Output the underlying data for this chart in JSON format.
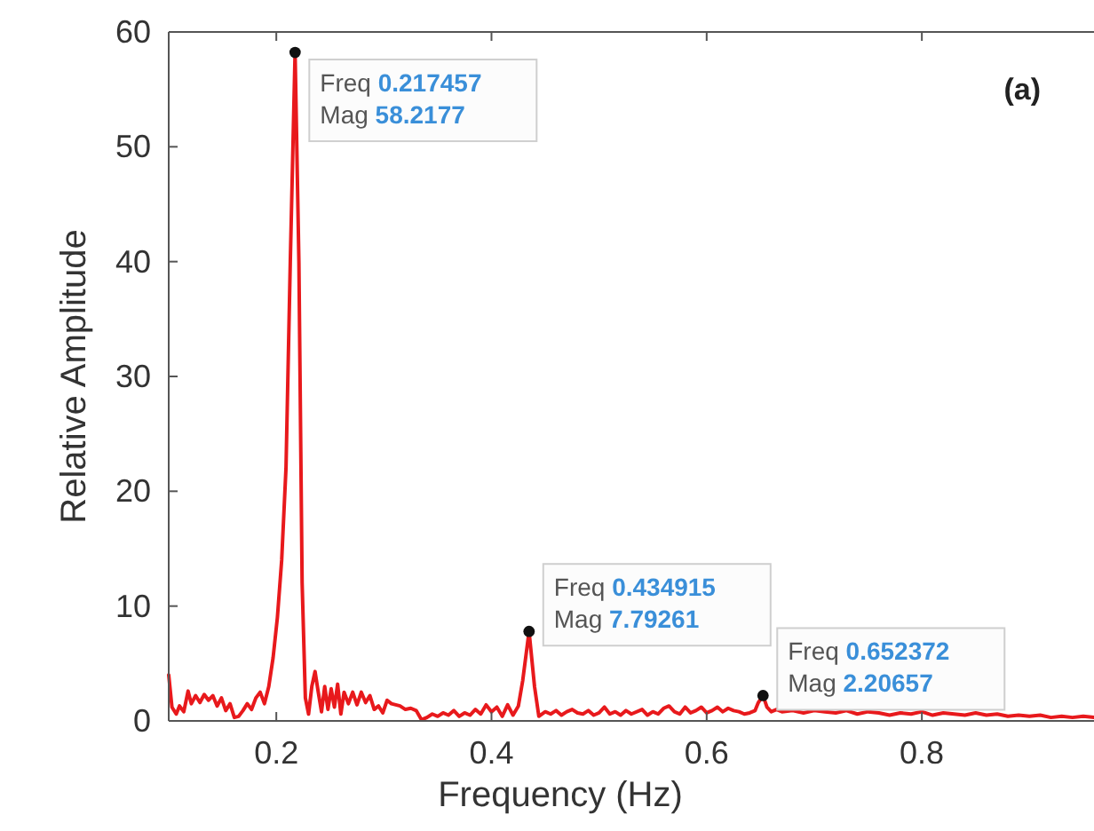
{
  "chart_data": {
    "type": "line",
    "xlabel": "Frequency (Hz)",
    "ylabel": "Relative Amplitude",
    "xlim": [
      0.1,
      0.96
    ],
    "ylim": [
      0,
      60
    ],
    "xticks": [
      0.2,
      0.4,
      0.6,
      0.8
    ],
    "yticks": [
      0,
      10,
      20,
      30,
      40,
      50,
      60
    ],
    "grid": false,
    "marker": "none",
    "line_style": "solid",
    "series": [
      {
        "color": "#e8191c",
        "x": [
          0.1,
          0.103,
          0.107,
          0.11,
          0.114,
          0.118,
          0.121,
          0.125,
          0.129,
          0.133,
          0.137,
          0.141,
          0.145,
          0.149,
          0.153,
          0.157,
          0.161,
          0.165,
          0.169,
          0.173,
          0.177,
          0.181,
          0.185,
          0.189,
          0.193,
          0.197,
          0.201,
          0.205,
          0.209,
          0.213,
          0.217457,
          0.221,
          0.224,
          0.227,
          0.23,
          0.233,
          0.236,
          0.239,
          0.242,
          0.245,
          0.248,
          0.251,
          0.254,
          0.257,
          0.26,
          0.263,
          0.267,
          0.271,
          0.275,
          0.279,
          0.283,
          0.287,
          0.291,
          0.295,
          0.299,
          0.303,
          0.307,
          0.311,
          0.315,
          0.32,
          0.325,
          0.33,
          0.335,
          0.34,
          0.345,
          0.35,
          0.355,
          0.36,
          0.365,
          0.37,
          0.375,
          0.38,
          0.385,
          0.39,
          0.395,
          0.4,
          0.405,
          0.41,
          0.415,
          0.42,
          0.425,
          0.429,
          0.434915,
          0.44,
          0.444,
          0.45,
          0.455,
          0.46,
          0.465,
          0.47,
          0.475,
          0.48,
          0.485,
          0.49,
          0.495,
          0.5,
          0.505,
          0.51,
          0.515,
          0.52,
          0.525,
          0.53,
          0.54,
          0.545,
          0.55,
          0.555,
          0.56,
          0.565,
          0.57,
          0.575,
          0.58,
          0.585,
          0.59,
          0.595,
          0.6,
          0.605,
          0.61,
          0.615,
          0.62,
          0.625,
          0.63,
          0.635,
          0.64,
          0.645,
          0.648,
          0.652372,
          0.656,
          0.66,
          0.665,
          0.67,
          0.68,
          0.69,
          0.7,
          0.71,
          0.72,
          0.73,
          0.74,
          0.75,
          0.76,
          0.77,
          0.78,
          0.79,
          0.8,
          0.81,
          0.82,
          0.83,
          0.84,
          0.85,
          0.86,
          0.87,
          0.88,
          0.89,
          0.9,
          0.91,
          0.92,
          0.93,
          0.94,
          0.95,
          0.96
        ],
        "values": [
          4.0,
          1.2,
          0.6,
          1.3,
          0.8,
          2.6,
          1.5,
          2.2,
          1.6,
          2.3,
          1.8,
          2.2,
          1.3,
          2.0,
          0.9,
          1.5,
          0.3,
          0.4,
          0.9,
          1.5,
          1.0,
          2.0,
          2.5,
          1.5,
          3.0,
          5.5,
          9,
          14,
          22,
          40,
          58.2177,
          40,
          12,
          2.0,
          0.6,
          3.0,
          4.3,
          2.5,
          0.8,
          3.0,
          1.0,
          2.8,
          1.2,
          3.2,
          0.6,
          2.5,
          1.5,
          2.5,
          1.4,
          2.5,
          1.6,
          2.2,
          1.0,
          1.3,
          0.7,
          1.8,
          1.5,
          1.4,
          1.3,
          1.0,
          1.1,
          0.9,
          0.1,
          0.3,
          0.6,
          0.4,
          0.7,
          0.5,
          0.9,
          0.4,
          0.7,
          0.5,
          1.0,
          0.6,
          1.4,
          0.8,
          1.2,
          0.4,
          1.4,
          0.5,
          1.3,
          3.5,
          7.79261,
          3.0,
          0.4,
          0.8,
          0.6,
          0.9,
          0.5,
          0.8,
          1.0,
          0.7,
          0.6,
          0.9,
          0.5,
          0.7,
          1.2,
          0.6,
          0.8,
          0.5,
          0.9,
          0.6,
          1.0,
          0.5,
          0.8,
          0.6,
          1.1,
          1.3,
          0.8,
          0.6,
          1.2,
          0.7,
          0.9,
          1.2,
          0.7,
          0.9,
          1.2,
          0.8,
          1.1,
          0.9,
          0.8,
          0.6,
          0.7,
          0.9,
          1.6,
          2.20657,
          1.2,
          0.8,
          1.0,
          0.8,
          0.9,
          0.7,
          0.9,
          0.8,
          0.7,
          0.9,
          0.6,
          0.8,
          0.7,
          0.5,
          0.7,
          0.6,
          0.8,
          0.5,
          0.7,
          0.6,
          0.5,
          0.7,
          0.5,
          0.6,
          0.4,
          0.5,
          0.4,
          0.5,
          0.3,
          0.4,
          0.3,
          0.4,
          0.3
        ]
      }
    ],
    "annotations": [
      {
        "text": "Freq 0.217457\nMag 58.2177",
        "x": 0.217457,
        "y": 58.2177
      },
      {
        "text": "Freq 0.434915\nMag 7.79261",
        "x": 0.434915,
        "y": 7.79261
      },
      {
        "text": "Freq 0.652372\nMag 2.20657",
        "x": 0.652372,
        "y": 2.20657
      },
      "(a)"
    ]
  }
}
